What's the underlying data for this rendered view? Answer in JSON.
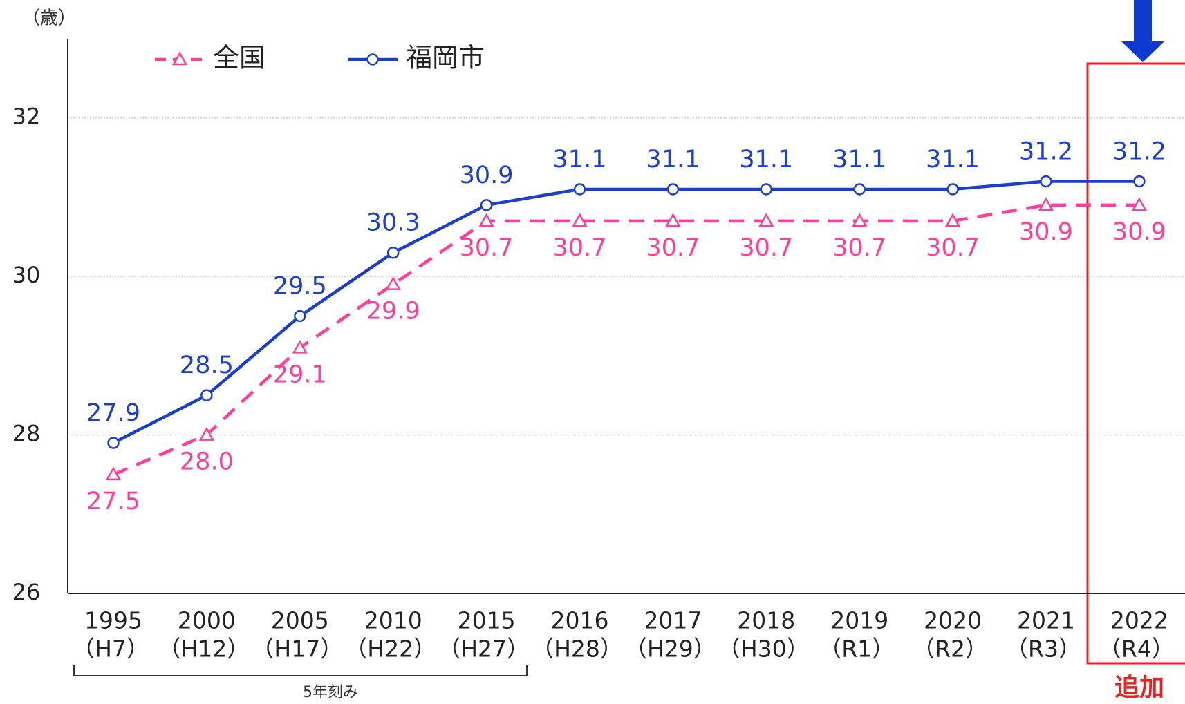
{
  "chart_data": {
    "type": "line",
    "y_axis_label": "（歳）",
    "categories": [
      "1995",
      "2000",
      "2005",
      "2010",
      "2015",
      "2016",
      "2017",
      "2018",
      "2019",
      "2020",
      "2021",
      "2022"
    ],
    "category_sublabels": [
      "（H7）",
      "（H12）",
      "（H17）",
      "（H22）",
      "（H27）",
      "（H28）",
      "（H29）",
      "（H30）",
      "（R1）",
      "（R2）",
      "（R3）",
      "（R4）"
    ],
    "series": [
      {
        "name": "全国",
        "color": "#ff3d9a",
        "line_style": "dashed",
        "marker": "triangle",
        "values": [
          27.5,
          28.0,
          29.1,
          29.9,
          30.7,
          30.7,
          30.7,
          30.7,
          30.7,
          30.7,
          30.9,
          30.9
        ],
        "value_labels": [
          "27.5",
          "28.0",
          "29.1",
          "29.9",
          "30.7",
          "30.7",
          "30.7",
          "30.7",
          "30.7",
          "30.7",
          "30.9",
          "30.9"
        ]
      },
      {
        "name": "福岡市",
        "color": "#1a3fcf",
        "line_style": "solid",
        "marker": "circle",
        "values": [
          27.9,
          28.5,
          29.5,
          30.3,
          30.9,
          31.1,
          31.1,
          31.1,
          31.1,
          31.1,
          31.2,
          31.2
        ],
        "value_labels": [
          "27.9",
          "28.5",
          "29.5",
          "30.3",
          "30.9",
          "31.1",
          "31.1",
          "31.1",
          "31.1",
          "31.1",
          "31.2",
          "31.2"
        ]
      }
    ],
    "ylim": [
      26,
      33
    ],
    "yticks": [
      26,
      28,
      30,
      32
    ],
    "grid": true,
    "legend": "top-left",
    "annotations": {
      "interval_note": "5年刻み",
      "added_note": "追加"
    }
  }
}
